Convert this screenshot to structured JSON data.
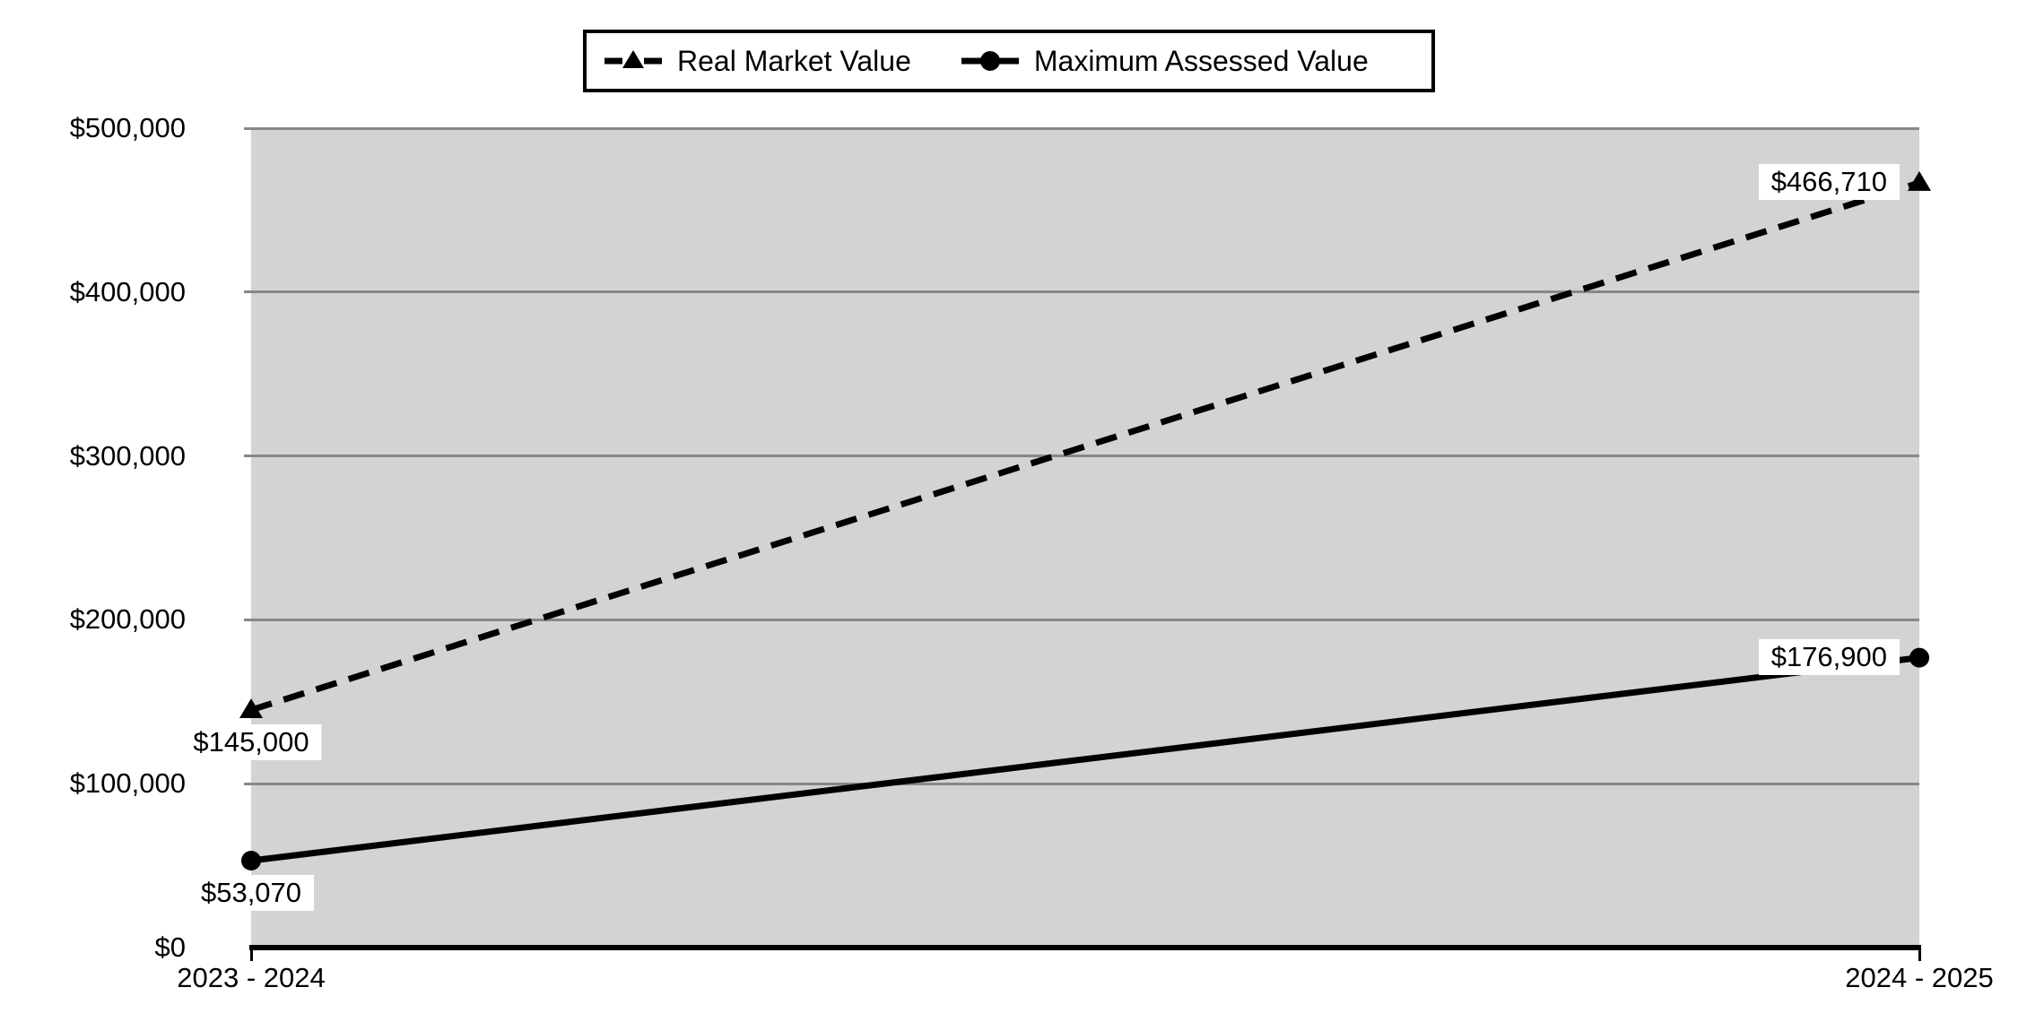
{
  "chart_data": {
    "type": "line",
    "title": "",
    "categories": [
      "2023 - 2024",
      "2024 - 2025"
    ],
    "series": [
      {
        "name": "Real Market Value",
        "values": [
          145000,
          466710
        ],
        "data_labels": [
          "$145,000",
          "$466,710"
        ],
        "line_style": "dashed",
        "marker": "triangle",
        "color": "#000000"
      },
      {
        "name": "Maximum Assessed Value",
        "values": [
          53070,
          176900
        ],
        "data_labels": [
          "$53,070",
          "$176,900"
        ],
        "line_style": "solid",
        "marker": "circle",
        "color": "#000000"
      }
    ],
    "x_axis": {
      "tick_labels": [
        "2023 - 2024",
        "2024 - 2025"
      ]
    },
    "y_axis": {
      "min": 0,
      "max": 500000,
      "tick_interval": 100000,
      "tick_values": [
        0,
        100000,
        200000,
        300000,
        400000,
        500000
      ],
      "tick_labels": [
        "$0",
        "$100,000",
        "$200,000",
        "$300,000",
        "$400,000",
        "$500,000"
      ]
    },
    "legend_position": "top",
    "grid": true,
    "data_label_placement": [
      "below",
      "left"
    ],
    "colors": {
      "plot_background": "#d3d3d3",
      "gridline": "#878787",
      "axis": "#000000",
      "series": "#000000",
      "data_label_background": "#ffffff"
    }
  }
}
